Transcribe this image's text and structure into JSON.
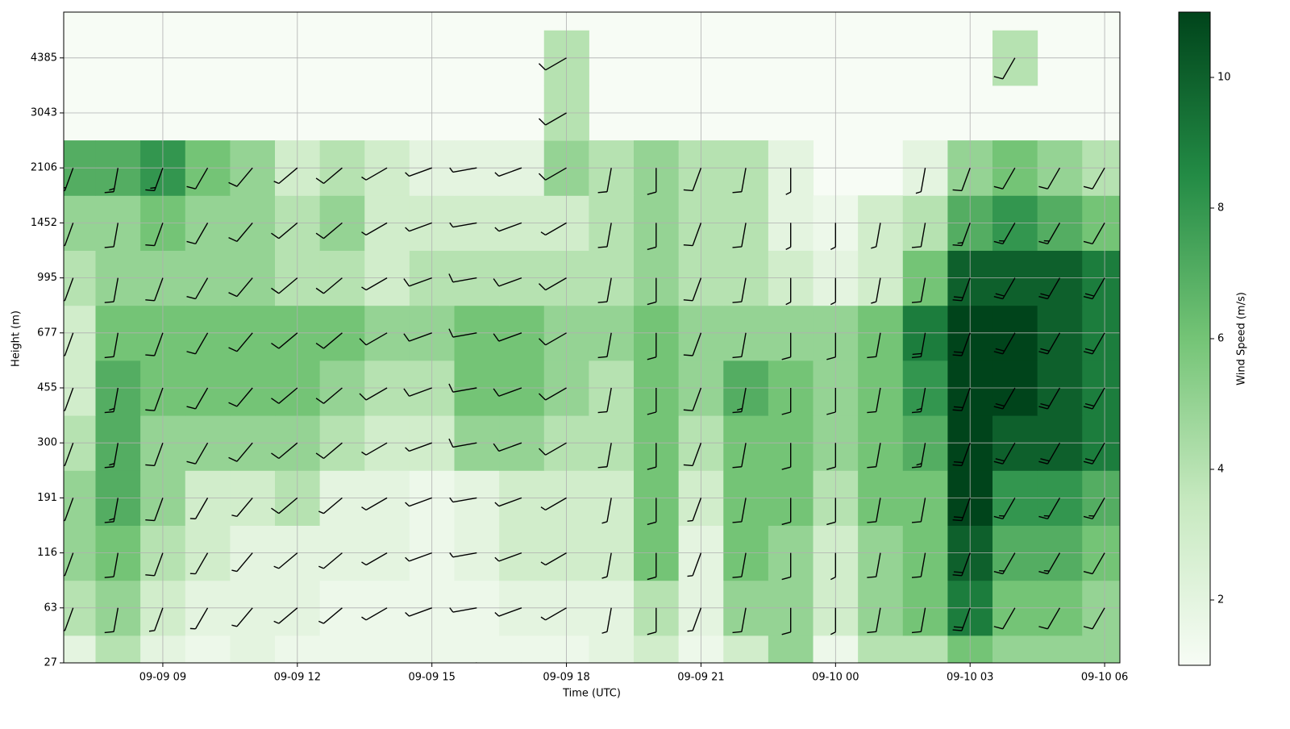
{
  "chart_data": {
    "type": "heatmap-barbs",
    "xlabel": "Time (UTC)",
    "ylabel": "Height (m)",
    "colorbar_label": "Wind Speed (m/s)",
    "colormap": [
      "#f7fcf5",
      "#c7e9c0",
      "#74c476",
      "#238b45",
      "#00441b"
    ],
    "x": [
      7,
      8,
      9,
      10,
      11,
      12,
      13,
      14,
      15,
      16,
      17,
      18,
      19,
      20,
      21,
      22,
      23,
      24,
      25,
      26,
      27,
      28,
      29,
      30
    ],
    "xlim": [
      6.79,
      30.34
    ],
    "xticks": [
      {
        "value": 9,
        "label": "09-09 09"
      },
      {
        "value": 12,
        "label": "09-09 12"
      },
      {
        "value": 15,
        "label": "09-09 15"
      },
      {
        "value": 18,
        "label": "09-09 18"
      },
      {
        "value": 21,
        "label": "09-09 21"
      },
      {
        "value": 24,
        "label": "09-10 00"
      },
      {
        "value": 27,
        "label": "09-10 03"
      },
      {
        "value": 30,
        "label": "09-10 06"
      }
    ],
    "levels": [
      "27",
      "63",
      "116",
      "191",
      "300",
      "455",
      "677",
      "995",
      "1452",
      "2106",
      "3043",
      "4385"
    ],
    "clim": [
      1,
      11
    ],
    "cticks": [
      2,
      4,
      6,
      8,
      10
    ],
    "wind_direction": [
      200,
      190,
      200,
      210,
      220,
      230,
      230,
      240,
      250,
      260,
      250,
      240,
      190,
      180,
      200,
      190,
      180,
      180,
      190,
      190,
      200,
      210,
      210,
      210
    ],
    "wind_speed": [
      [
        2,
        4,
        2,
        1.5,
        2,
        1.5,
        1.5,
        1.5,
        1.5,
        1.5,
        1.5,
        1.5,
        2,
        3,
        1.5,
        3,
        5,
        1.5,
        4,
        4,
        6,
        5,
        5,
        5
      ],
      [
        4,
        5,
        3,
        2,
        2,
        2,
        1.5,
        1.5,
        1.5,
        1.5,
        2,
        2,
        2,
        4,
        2,
        5,
        5,
        3,
        5,
        6,
        9,
        6,
        6,
        5
      ],
      [
        5,
        6,
        4,
        3,
        2,
        2,
        2,
        2,
        1.5,
        2,
        3,
        3,
        3,
        6,
        2,
        6,
        5,
        3,
        5,
        6,
        10,
        7,
        7,
        6
      ],
      [
        5,
        7,
        5,
        3,
        3,
        4,
        2,
        2,
        1.5,
        2,
        3,
        3,
        3,
        6,
        3,
        6,
        6,
        4,
        6,
        6,
        11,
        8,
        8,
        7
      ],
      [
        4,
        7,
        5,
        5,
        5,
        5,
        4,
        3,
        3,
        5,
        5,
        4,
        4,
        6,
        4,
        6,
        6,
        5,
        6,
        7,
        11,
        10,
        10,
        9
      ],
      [
        3,
        7,
        6,
        6,
        6,
        6,
        5,
        4,
        4,
        6,
        6,
        5,
        4,
        6,
        5,
        7,
        6,
        5,
        6,
        8,
        11,
        11,
        10,
        9
      ],
      [
        3,
        6,
        6,
        6,
        6,
        6,
        6,
        5,
        5,
        6,
        6,
        5,
        5,
        6,
        5,
        5,
        5,
        5,
        6,
        9,
        11,
        11,
        10,
        9
      ],
      [
        4,
        5,
        5,
        5,
        5,
        4,
        4,
        3,
        4,
        4,
        4,
        4,
        4,
        5,
        4,
        4,
        3,
        2,
        3,
        6,
        10,
        10,
        10,
        9
      ],
      [
        5,
        5,
        6,
        5,
        5,
        4,
        5,
        3,
        3,
        3,
        3,
        3,
        4,
        5,
        4,
        4,
        2,
        1.5,
        3,
        4,
        7,
        8,
        7,
        6
      ],
      [
        7,
        7,
        8,
        6,
        5,
        3,
        4,
        3,
        2,
        2,
        2,
        5,
        4,
        5,
        4,
        4,
        2,
        null,
        null,
        2,
        5,
        6,
        5,
        4
      ],
      [
        null,
        null,
        null,
        null,
        null,
        null,
        null,
        null,
        null,
        null,
        null,
        4,
        null,
        null,
        null,
        null,
        null,
        null,
        null,
        null,
        null,
        null,
        null,
        null
      ],
      [
        null,
        null,
        null,
        null,
        null,
        null,
        null,
        null,
        null,
        null,
        null,
        4,
        null,
        null,
        null,
        null,
        null,
        null,
        null,
        null,
        null,
        4,
        null,
        null
      ]
    ],
    "grid": true
  }
}
